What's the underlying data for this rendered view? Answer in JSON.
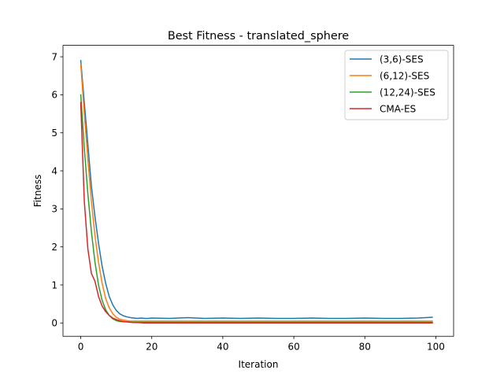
{
  "chart_data": {
    "type": "line",
    "title": "Best Fitness - translated_sphere",
    "xlabel": "Iteration",
    "ylabel": "Fitness",
    "xlim": [
      -5,
      105
    ],
    "ylim": [
      -0.35,
      7.3
    ],
    "xticks": [
      0,
      20,
      40,
      60,
      80,
      100
    ],
    "xtick_labels": [
      "0",
      "20",
      "40",
      "60",
      "80",
      "100"
    ],
    "yticks": [
      0,
      1,
      2,
      3,
      4,
      5,
      6,
      7
    ],
    "ytick_labels": [
      "0",
      "1",
      "2",
      "3",
      "4",
      "5",
      "6",
      "7"
    ],
    "grid": false,
    "legend": "top-right",
    "series": [
      {
        "name": "(3,6)-SES",
        "color": "#1f77b4",
        "x": [
          0,
          1,
          2,
          3,
          4,
          5,
          6,
          7,
          8,
          9,
          10,
          11,
          12,
          13,
          14,
          15,
          16,
          17,
          18,
          19,
          20,
          25,
          30,
          35,
          40,
          45,
          50,
          55,
          60,
          65,
          70,
          75,
          80,
          85,
          90,
          95,
          99
        ],
        "y": [
          6.9,
          5.8,
          4.7,
          3.6,
          2.8,
          2.1,
          1.5,
          1.05,
          0.7,
          0.48,
          0.33,
          0.24,
          0.19,
          0.16,
          0.14,
          0.13,
          0.12,
          0.13,
          0.12,
          0.12,
          0.13,
          0.12,
          0.14,
          0.12,
          0.13,
          0.12,
          0.13,
          0.12,
          0.12,
          0.13,
          0.12,
          0.12,
          0.13,
          0.12,
          0.12,
          0.13,
          0.15
        ]
      },
      {
        "name": "(6,12)-SES",
        "color": "#ff7f0e",
        "x": [
          0,
          1,
          2,
          3,
          4,
          5,
          6,
          7,
          8,
          9,
          10,
          11,
          12,
          13,
          14,
          15,
          20,
          30,
          40,
          50,
          60,
          70,
          80,
          90,
          99
        ],
        "y": [
          6.8,
          5.5,
          4.3,
          3.2,
          2.3,
          1.6,
          1.05,
          0.65,
          0.4,
          0.25,
          0.15,
          0.1,
          0.08,
          0.06,
          0.05,
          0.05,
          0.05,
          0.05,
          0.05,
          0.05,
          0.05,
          0.05,
          0.05,
          0.05,
          0.05
        ]
      },
      {
        "name": "(12,24)-SES",
        "color": "#2ca02c",
        "x": [
          0,
          1,
          2,
          3,
          4,
          5,
          6,
          7,
          8,
          9,
          10,
          11,
          12,
          13,
          14,
          15,
          20,
          30,
          40,
          50,
          60,
          70,
          80,
          90,
          99
        ],
        "y": [
          6.0,
          4.6,
          3.4,
          2.4,
          1.6,
          1.0,
          0.6,
          0.35,
          0.2,
          0.11,
          0.06,
          0.04,
          0.03,
          0.03,
          0.02,
          0.02,
          0.02,
          0.02,
          0.02,
          0.02,
          0.02,
          0.02,
          0.02,
          0.02,
          0.02
        ]
      },
      {
        "name": "CMA-ES",
        "color": "#d62728",
        "x": [
          0,
          1,
          2,
          3,
          4,
          5,
          6,
          7,
          8,
          9,
          10,
          11,
          12,
          13,
          14,
          15,
          16,
          18,
          20,
          30,
          40,
          50,
          60,
          70,
          80,
          90,
          99
        ],
        "y": [
          5.8,
          3.2,
          1.95,
          1.3,
          1.1,
          0.7,
          0.45,
          0.3,
          0.2,
          0.13,
          0.09,
          0.06,
          0.04,
          0.03,
          0.02,
          0.01,
          0.01,
          0.0,
          0.0,
          0.0,
          0.0,
          0.0,
          0.0,
          0.0,
          0.0,
          0.0,
          0.0
        ]
      }
    ]
  }
}
